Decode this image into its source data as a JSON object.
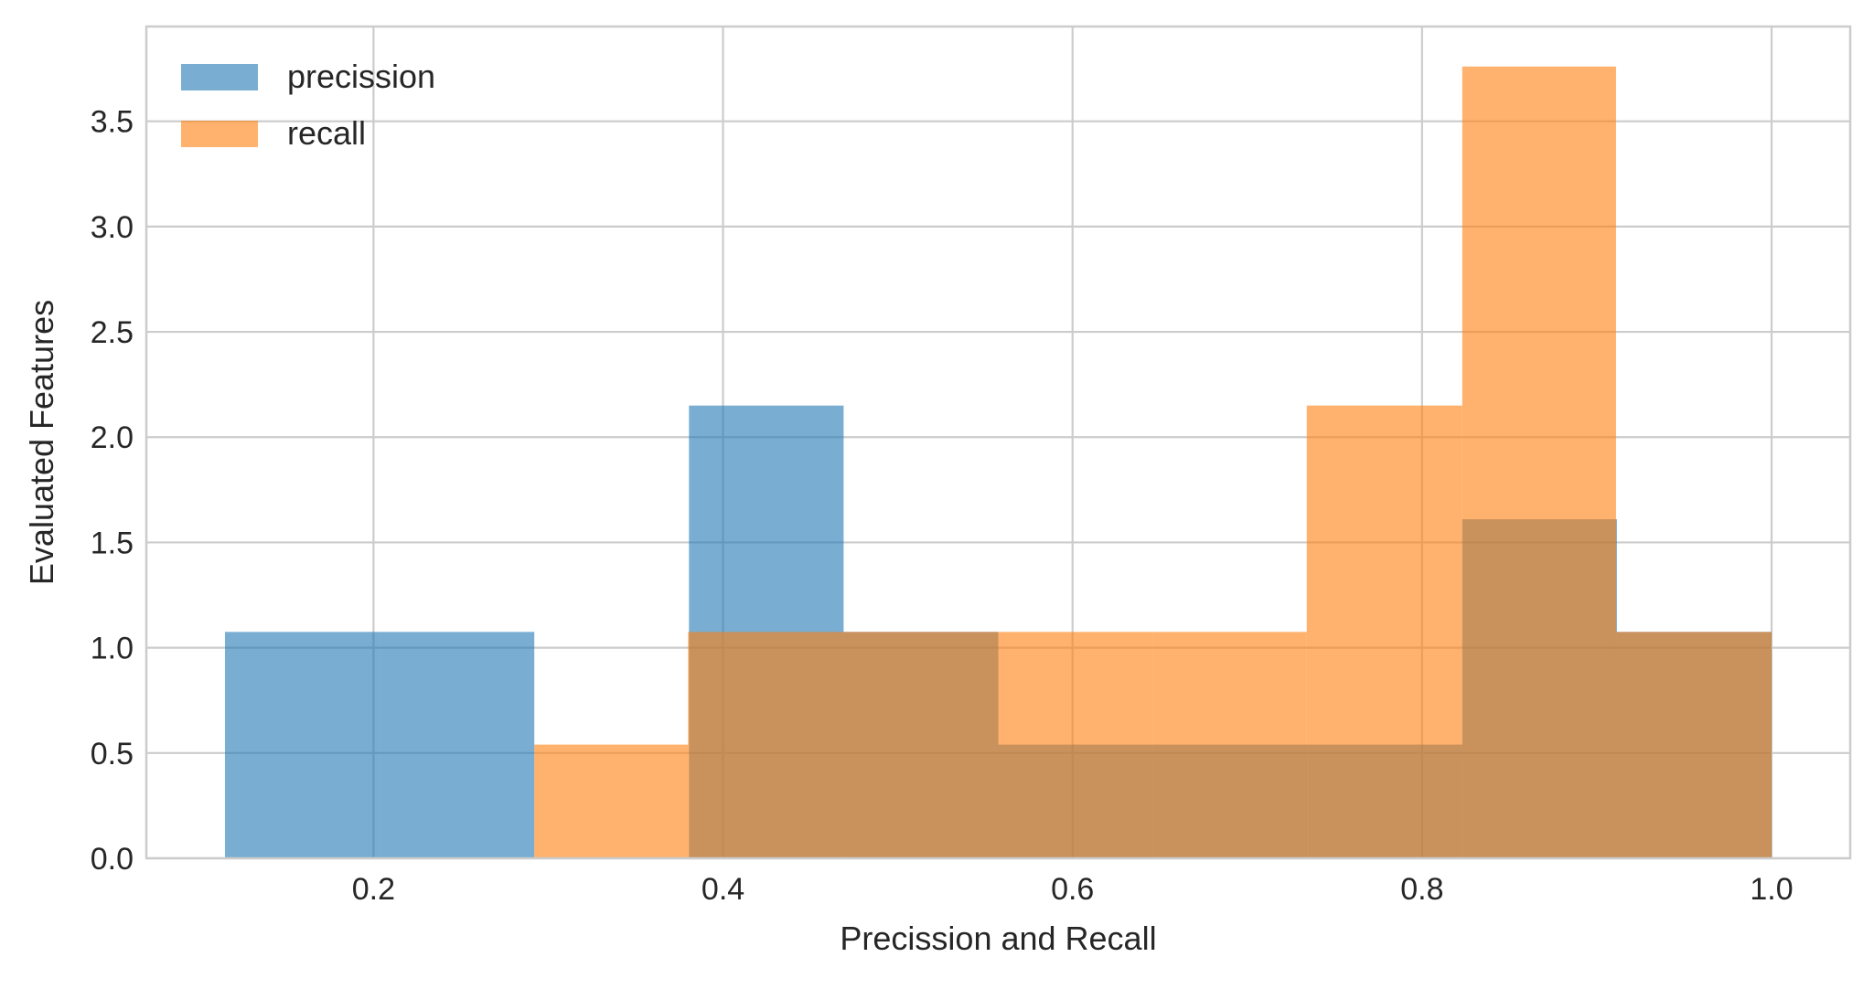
{
  "chart_data": {
    "type": "histogram",
    "xlabel": "Precission and Recall",
    "ylabel": "Evaluated Features",
    "xlim": [
      0.07,
      1.045
    ],
    "ylim": [
      0,
      3.95
    ],
    "xticks": [
      0.2,
      0.4,
      0.6,
      0.8,
      1.0
    ],
    "xtick_labels": [
      "0.2",
      "0.4",
      "0.6",
      "0.8",
      "1.0"
    ],
    "yticks": [
      0,
      0.5,
      1.0,
      1.5,
      2.0,
      2.5,
      3.0,
      3.5
    ],
    "ytick_labels": [
      "0.0",
      "0.5",
      "1.0",
      "1.5",
      "2.0",
      "2.5",
      "3.0",
      "3.5"
    ],
    "grid": true,
    "legend_position": "top-left",
    "bar_opacity": 0.6,
    "series": [
      {
        "name": "precission",
        "color": "#1f77b4",
        "bin_edges": [
          0.115,
          0.2035,
          0.292,
          0.3805,
          0.469,
          0.5575,
          0.646,
          0.7345,
          0.823,
          0.9115,
          1.0
        ],
        "values": [
          1.075,
          1.075,
          0,
          2.15,
          1.075,
          0.54,
          0.54,
          0.54,
          1.61,
          1.075
        ]
      },
      {
        "name": "recall",
        "color": "#ff7f0e",
        "bin_edges": [
          0.292,
          0.38,
          0.469,
          0.557,
          0.646,
          0.734,
          0.823,
          0.911,
          1.0
        ],
        "values": [
          0.54,
          1.075,
          1.075,
          1.075,
          1.075,
          2.15,
          3.76,
          1.075
        ]
      }
    ]
  }
}
